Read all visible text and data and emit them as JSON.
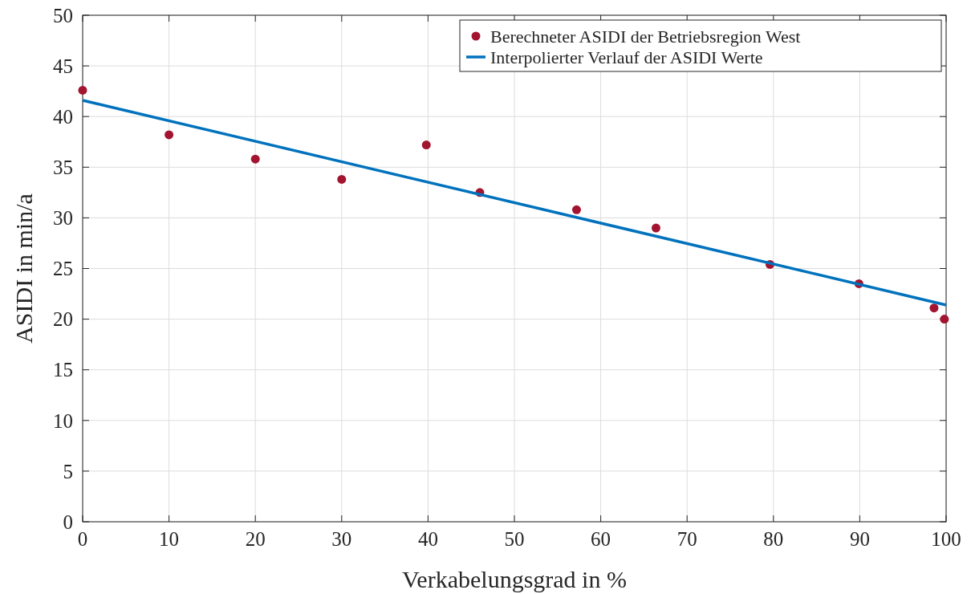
{
  "chart_data": {
    "type": "scatter",
    "xlabel": "Verkabelungsgrad in %",
    "ylabel": "ASIDI in min/a",
    "xlim": [
      0,
      100
    ],
    "xticks": [
      0,
      10,
      20,
      30,
      40,
      50,
      60,
      70,
      80,
      90,
      100
    ],
    "ylim": [
      0,
      50
    ],
    "yticks": [
      0,
      5,
      10,
      15,
      20,
      25,
      30,
      35,
      40,
      45,
      50
    ],
    "grid": true,
    "legend": "top right",
    "series": [
      {
        "name": "Berechneter ASIDI der Betriebsregion West",
        "marker": "circle",
        "color": "#a2142f",
        "x": [
          0,
          10,
          20,
          30,
          39.8,
          46,
          57.2,
          66.4,
          79.6,
          89.9,
          98.6,
          99.8
        ],
        "values": [
          42.6,
          38.2,
          35.8,
          33.8,
          37.2,
          32.5,
          30.8,
          29.0,
          25.4,
          23.5,
          21.1,
          20.0
        ]
      },
      {
        "name": "Interpolierter Verlauf der ASIDI Werte",
        "type": "line",
        "marker": "none",
        "line_style": "solid",
        "color": "#0072bd",
        "x": [
          0,
          100
        ],
        "values": [
          41.6,
          21.4
        ]
      }
    ]
  }
}
